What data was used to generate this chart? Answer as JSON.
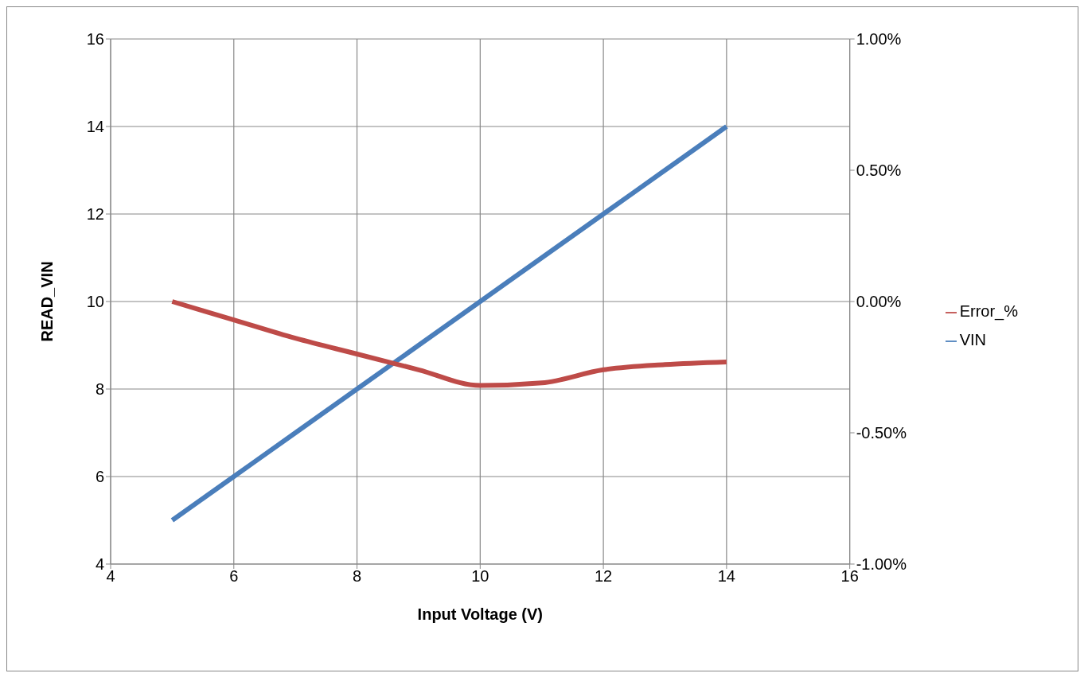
{
  "chart_data": {
    "type": "line",
    "xlabel": "Input Voltage (V)",
    "ylabel": "READ_VIN",
    "x": [
      5,
      6,
      7,
      8,
      9,
      10,
      11,
      12,
      13,
      14
    ],
    "series": [
      {
        "name": "VIN",
        "color": "#4a7ebb",
        "values": [
          5,
          6,
          7,
          8,
          9,
          10,
          11,
          12,
          13,
          14
        ]
      },
      {
        "name": "Error_%",
        "color": "#be4b48",
        "axis": "y2",
        "values": [
          0,
          -0.07,
          -0.14,
          -0.2,
          -0.26,
          -0.32,
          -0.31,
          -0.26,
          -0.24,
          -0.23
        ]
      }
    ],
    "xlim": [
      4,
      16
    ],
    "xticks": [
      4,
      6,
      8,
      10,
      12,
      14,
      16
    ],
    "ylim": [
      4,
      16
    ],
    "yticks": [
      4,
      6,
      8,
      10,
      12,
      14,
      16
    ],
    "y2lim": [
      -1,
      1
    ],
    "y2ticks": [
      {
        "value": -1,
        "label": "-1.00%"
      },
      {
        "value": -0.5,
        "label": "-0.50%"
      },
      {
        "value": 0,
        "label": "0.00%"
      },
      {
        "value": 0.5,
        "label": "0.50%"
      },
      {
        "value": 1,
        "label": "1.00%"
      }
    ],
    "grid": true,
    "legend": "right",
    "marker": "none",
    "line_style": "solid"
  }
}
